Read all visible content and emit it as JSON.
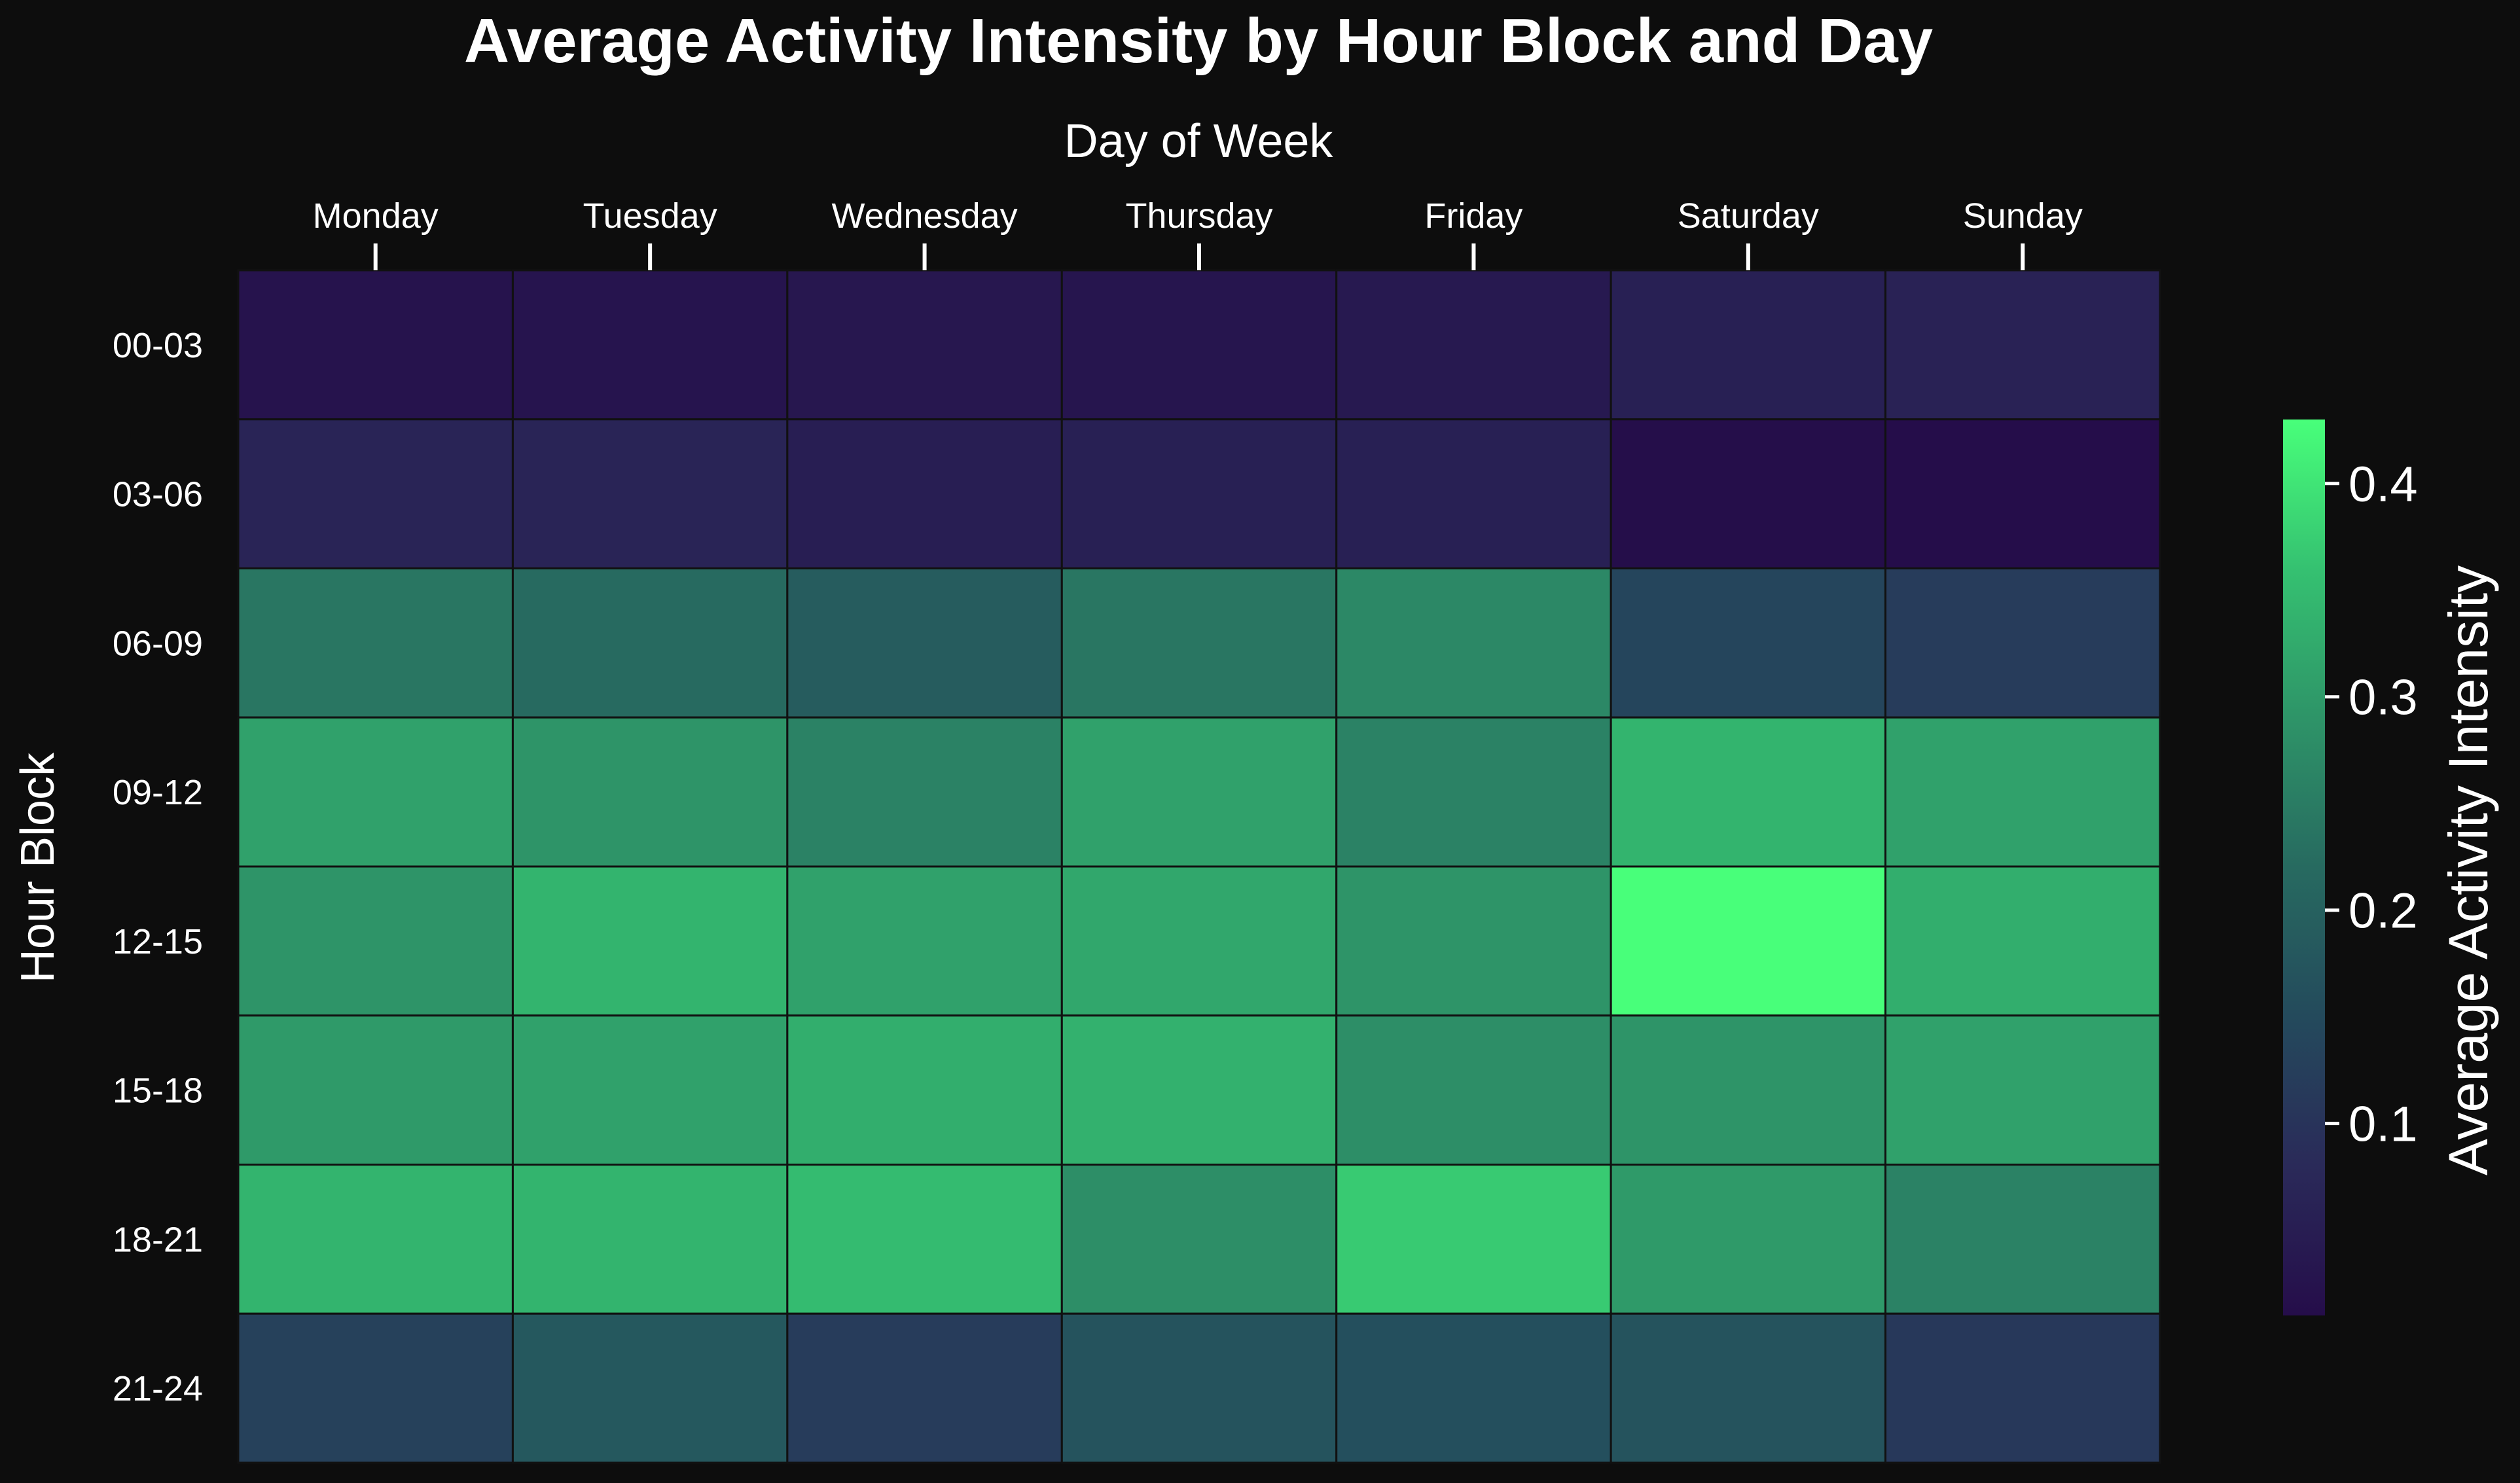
{
  "chart_data": {
    "type": "heatmap",
    "title": "Average Activity Intensity by Hour Block and Day",
    "xlabel": "Day of Week",
    "ylabel": "Hour Block",
    "x_axis_position": "top",
    "columns": [
      "Monday",
      "Tuesday",
      "Wednesday",
      "Thursday",
      "Friday",
      "Saturday",
      "Sunday"
    ],
    "rows": [
      "00-03",
      "03-06",
      "06-09",
      "09-12",
      "12-15",
      "15-18",
      "18-21",
      "21-24"
    ],
    "values": [
      [
        0.025,
        0.028,
        0.033,
        0.03,
        0.04,
        0.055,
        0.06
      ],
      [
        0.065,
        0.065,
        0.05,
        0.055,
        0.055,
        0.012,
        0.01
      ],
      [
        0.24,
        0.22,
        0.19,
        0.24,
        0.27,
        0.14,
        0.12
      ],
      [
        0.31,
        0.29,
        0.26,
        0.31,
        0.26,
        0.34,
        0.31
      ],
      [
        0.29,
        0.34,
        0.31,
        0.32,
        0.29,
        0.43,
        0.33
      ],
      [
        0.3,
        0.31,
        0.33,
        0.335,
        0.28,
        0.29,
        0.31
      ],
      [
        0.34,
        0.34,
        0.35,
        0.28,
        0.37,
        0.3,
        0.26
      ],
      [
        0.13,
        0.18,
        0.12,
        0.17,
        0.16,
        0.17,
        0.11
      ]
    ],
    "colorbar": {
      "label": "Average Activity Intensity",
      "min": 0.01,
      "max": 0.43,
      "ticks": [
        0.1,
        0.2,
        0.3,
        0.4
      ],
      "tick_labels": [
        "0.1",
        "0.2",
        "0.3",
        "0.4"
      ],
      "colormap_stops": [
        "#250d4a",
        "#2a2a59",
        "#244a5c",
        "#276a60",
        "#2e9468",
        "#35c171",
        "#48ff7a"
      ]
    },
    "grid": false,
    "cell_border_color": "#111111",
    "background_color": "#0d0d0d"
  }
}
